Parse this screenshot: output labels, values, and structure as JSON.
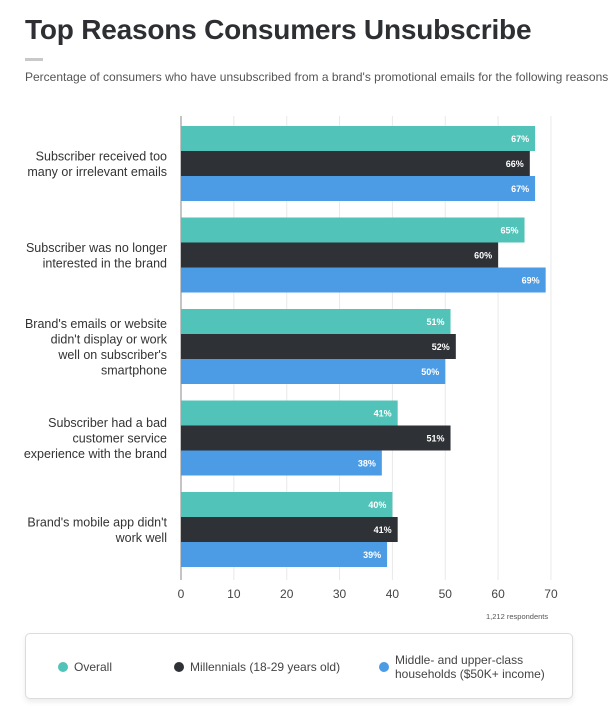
{
  "header": {
    "title": "Top Reasons Consumers Unsubscribe",
    "subtitle": "Percentage of consumers who have unsubscribed from a brand's promotional emails for the following reasons"
  },
  "footnote": "1,212 respondents",
  "colors": {
    "overall": "#52c3b8",
    "millennials": "#2e3135",
    "middle_upper": "#4b9be5",
    "axis": "#888888",
    "grid": "#e9e9e9"
  },
  "chart_data": {
    "type": "bar",
    "orientation": "horizontal",
    "categories": [
      [
        "Subscriber received too",
        "many or irrelevant emails"
      ],
      [
        "Subscriber was no longer",
        "interested in the brand"
      ],
      [
        "Brand's emails or website",
        "didn't display or work",
        "well on subscriber's",
        "smartphone"
      ],
      [
        "Subscriber had a bad",
        "customer service",
        "experience with the brand"
      ],
      [
        "Brand's mobile app didn't",
        "work well"
      ]
    ],
    "series": [
      {
        "name": "Overall",
        "color": "#52c3b8",
        "values": [
          67,
          65,
          51,
          41,
          40
        ]
      },
      {
        "name": "Millennials (18-29 years old)",
        "color": "#2e3135",
        "values": [
          66,
          60,
          52,
          51,
          41
        ]
      },
      {
        "name": "Middle- and upper-class households ($50K+ income)",
        "color": "#4b9be5",
        "values": [
          67,
          69,
          50,
          38,
          39
        ]
      }
    ],
    "data_label_suffix": "%",
    "xlim": [
      0,
      70
    ],
    "xticks": [
      0,
      10,
      20,
      30,
      40,
      50,
      60,
      70
    ],
    "grid": true
  },
  "legend": {
    "items": [
      {
        "label_lines": [
          "Overall"
        ],
        "color": "#52c3b8"
      },
      {
        "label_lines": [
          "Millennials (18-29 years old)"
        ],
        "color": "#2e3135"
      },
      {
        "label_lines": [
          "Middle- and upper-class",
          "households ($50K+ income)"
        ],
        "color": "#4b9be5"
      }
    ]
  }
}
